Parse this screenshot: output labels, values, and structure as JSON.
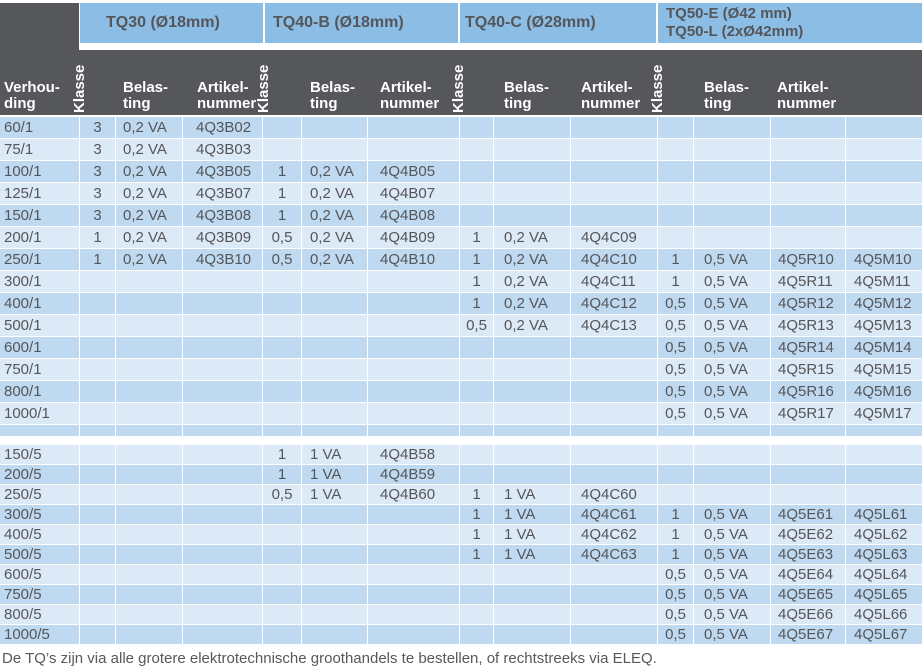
{
  "groups": [
    {
      "title": "TQ30 (Ø18mm)"
    },
    {
      "title": "TQ40-B (Ø18mm)"
    },
    {
      "title": "TQ40-C (Ø28mm)"
    },
    {
      "title": "TQ50-E (Ø42 mm)\nTQ50-L (2xØ42mm)"
    }
  ],
  "subheaders": {
    "verhouding": "Verhou-\nding",
    "klasse": "Klasse",
    "belasting": "Belas-\nting",
    "artikelnummer": "Artikel-\nnummer"
  },
  "columns": {
    "keys": [
      "verhouding",
      "tq30-klasse",
      "tq30-belasting",
      "tq30-artikelnummer",
      "tq40b-klasse",
      "tq40b-belasting",
      "tq40b-artikelnummer",
      "tq40c-klasse",
      "tq40c-belasting",
      "tq40c-artikelnummer",
      "tq50-klasse",
      "tq50-belasting",
      "tq50-artikelnummer-e",
      "tq50-artikelnummer-l"
    ]
  },
  "sections": [
    {
      "rows": [
        [
          "60/1",
          "3",
          "0,2 VA",
          "4Q3B02",
          "",
          "",
          "",
          "",
          "",
          "",
          "",
          "",
          "",
          ""
        ],
        [
          "75/1",
          "3",
          "0,2 VA",
          "4Q3B03",
          "",
          "",
          "",
          "",
          "",
          "",
          "",
          "",
          "",
          ""
        ],
        [
          "100/1",
          "3",
          "0,2 VA",
          "4Q3B05",
          "1",
          "0,2 VA",
          "4Q4B05",
          "",
          "",
          "",
          "",
          "",
          "",
          ""
        ],
        [
          "125/1",
          "3",
          "0,2 VA",
          "4Q3B07",
          "1",
          "0,2 VA",
          "4Q4B07",
          "",
          "",
          "",
          "",
          "",
          "",
          ""
        ],
        [
          "150/1",
          "3",
          "0,2 VA",
          "4Q3B08",
          "1",
          "0,2 VA",
          "4Q4B08",
          "",
          "",
          "",
          "",
          "",
          "",
          ""
        ],
        [
          "200/1",
          "1",
          "0,2 VA",
          "4Q3B09",
          "0,5",
          "0,2 VA",
          "4Q4B09",
          "1",
          "0,2 VA",
          "4Q4C09",
          "",
          "",
          "",
          ""
        ],
        [
          "250/1",
          "1",
          "0,2 VA",
          "4Q3B10",
          "0,5",
          "0,2 VA",
          "4Q4B10",
          "1",
          "0,2 VA",
          "4Q4C10",
          "1",
          "0,5 VA",
          "4Q5R10",
          "4Q5M10"
        ],
        [
          "300/1",
          "",
          "",
          "",
          "",
          "",
          "",
          "1",
          "0,2 VA",
          "4Q4C11",
          "1",
          "0,5 VA",
          "4Q5R11",
          "4Q5M11"
        ],
        [
          "400/1",
          "",
          "",
          "",
          "",
          "",
          "",
          "1",
          "0,2 VA",
          "4Q4C12",
          "0,5",
          "0,5 VA",
          "4Q5R12",
          "4Q5M12"
        ],
        [
          "500/1",
          "",
          "",
          "",
          "",
          "",
          "",
          "0,5",
          "0,2 VA",
          "4Q4C13",
          "0,5",
          "0,5 VA",
          "4Q5R13",
          "4Q5M13"
        ],
        [
          "600/1",
          "",
          "",
          "",
          "",
          "",
          "",
          "",
          "",
          "",
          "0,5",
          "0,5 VA",
          "4Q5R14",
          "4Q5M14"
        ],
        [
          "750/1",
          "",
          "",
          "",
          "",
          "",
          "",
          "",
          "",
          "",
          "0,5",
          "0,5 VA",
          "4Q5R15",
          "4Q5M15"
        ],
        [
          "800/1",
          "",
          "",
          "",
          "",
          "",
          "",
          "",
          "",
          "",
          "0,5",
          "0,5 VA",
          "4Q5R16",
          "4Q5M16"
        ],
        [
          "1000/1",
          "",
          "",
          "",
          "",
          "",
          "",
          "",
          "",
          "",
          "0,5",
          "0,5 VA",
          "4Q5R17",
          "4Q5M17"
        ]
      ]
    },
    {
      "rows": [
        [
          "150/5",
          "",
          "",
          "",
          "1",
          "1 VA",
          "4Q4B58",
          "",
          "",
          "",
          "",
          "",
          "",
          ""
        ],
        [
          "200/5",
          "",
          "",
          "",
          "1",
          "1 VA",
          "4Q4B59",
          "",
          "",
          "",
          "",
          "",
          "",
          ""
        ],
        [
          "250/5",
          "",
          "",
          "",
          "0,5",
          "1 VA",
          "4Q4B60",
          "1",
          "1 VA",
          "4Q4C60",
          "",
          "",
          "",
          ""
        ],
        [
          "300/5",
          "",
          "",
          "",
          "",
          "",
          "",
          "1",
          "1 VA",
          "4Q4C61",
          "1",
          "0,5 VA",
          "4Q5E61",
          "4Q5L61"
        ],
        [
          "400/5",
          "",
          "",
          "",
          "",
          "",
          "",
          "1",
          "1 VA",
          "4Q4C62",
          "1",
          "0,5 VA",
          "4Q5E62",
          "4Q5L62"
        ],
        [
          "500/5",
          "",
          "",
          "",
          "",
          "",
          "",
          "1",
          "1 VA",
          "4Q4C63",
          "1",
          "0,5 VA",
          "4Q5E63",
          "4Q5L63"
        ],
        [
          "600/5",
          "",
          "",
          "",
          "",
          "",
          "",
          "",
          "",
          "",
          "0,5",
          "0,5 VA",
          "4Q5E64",
          "4Q5L64"
        ],
        [
          "750/5",
          "",
          "",
          "",
          "",
          "",
          "",
          "",
          "",
          "",
          "0,5",
          "0,5 VA",
          "4Q5E65",
          "4Q5L65"
        ],
        [
          "800/5",
          "",
          "",
          "",
          "",
          "",
          "",
          "",
          "",
          "",
          "0,5",
          "0,5 VA",
          "4Q5E66",
          "4Q5L66"
        ],
        [
          "1000/5",
          "",
          "",
          "",
          "",
          "",
          "",
          "",
          "",
          "",
          "0,5",
          "0,5 VA",
          "4Q5E67",
          "4Q5L67"
        ]
      ]
    }
  ],
  "footer": {
    "note": "De TQ’s zijn via alle grotere elektrotechnische groothandels te bestellen, of rechtstreeks via ELEQ."
  },
  "colors": {
    "header_blue": "#8cbde5",
    "header_dark": "#56575b",
    "row_light": "#dce9f6",
    "row_medium": "#bed9f0",
    "text": "#55565a"
  }
}
